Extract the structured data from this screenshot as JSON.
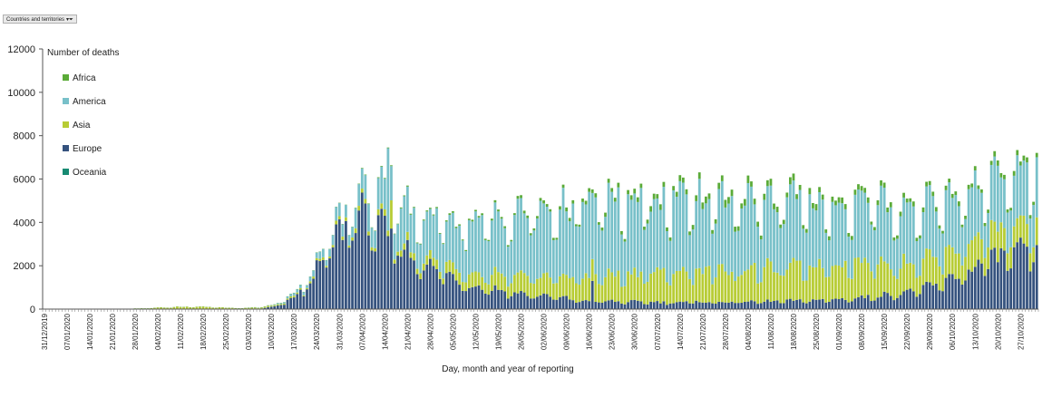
{
  "toolbar": {
    "filter_label": "Countries and territories"
  },
  "chart_data": {
    "type": "bar",
    "stacked": true,
    "ylabel": "Number of deaths",
    "xlabel": "Day, month and year of reporting",
    "ylim": [
      0,
      12000
    ],
    "yticks": [
      0,
      2000,
      4000,
      6000,
      8000,
      10000,
      12000
    ],
    "grid": false,
    "legend": "top-left",
    "x_start": "31/12/2019",
    "x_end": "01/11/2020",
    "xtick_labels": [
      "31/12/2019",
      "07/01/2020",
      "14/01/2020",
      "21/01/2020",
      "28/01/2020",
      "04/02/2020",
      "11/02/2020",
      "18/02/2020",
      "25/02/2020",
      "03/03/2020",
      "10/03/2020",
      "17/03/2020",
      "24/03/2020",
      "31/03/2020",
      "07/04/2020",
      "14/04/2020",
      "21/04/2020",
      "28/04/2020",
      "05/05/2020",
      "12/05/2020",
      "19/05/2020",
      "26/05/2020",
      "02/06/2020",
      "09/06/2020",
      "16/06/2020",
      "23/06/2020",
      "30/06/2020",
      "07/07/2020",
      "14/07/2020",
      "21/07/2020",
      "28/07/2020",
      "04/08/2020",
      "11/08/2020",
      "18/08/2020",
      "25/08/2020",
      "01/09/2020",
      "08/09/2020",
      "15/09/2020",
      "22/09/2020",
      "29/09/2020",
      "06/10/2020",
      "13/10/2020",
      "20/10/2020",
      "27/10/2020"
    ],
    "series_order": [
      "Africa",
      "America",
      "Asia",
      "Europe",
      "Oceania"
    ],
    "colors": {
      "Africa": "#5bab38",
      "America": "#78c0c9",
      "Asia": "#b7cc34",
      "Europe": "#35527e",
      "Oceania": "#178a72"
    },
    "anchors": {
      "Europe": [
        [
          0,
          0
        ],
        [
          62,
          0
        ],
        [
          68,
          50
        ],
        [
          72,
          150
        ],
        [
          76,
          450
        ],
        [
          80,
          900
        ],
        [
          85,
          2000
        ],
        [
          90,
          3300
        ],
        [
          95,
          4200
        ],
        [
          98,
          4300
        ],
        [
          103,
          3800
        ],
        [
          106,
          3300
        ],
        [
          110,
          2900
        ],
        [
          113,
          2500
        ],
        [
          118,
          2000
        ],
        [
          123,
          1700
        ],
        [
          128,
          1300
        ],
        [
          133,
          1050
        ],
        [
          138,
          950
        ],
        [
          143,
          800
        ],
        [
          148,
          700
        ],
        [
          153,
          620
        ],
        [
          158,
          560
        ],
        [
          165,
          400
        ],
        [
          172,
          370
        ],
        [
          180,
          340
        ],
        [
          190,
          320
        ],
        [
          200,
          330
        ],
        [
          210,
          330
        ],
        [
          220,
          350
        ],
        [
          230,
          380
        ],
        [
          240,
          420
        ],
        [
          250,
          500
        ],
        [
          256,
          600
        ],
        [
          262,
          700
        ],
        [
          268,
          850
        ],
        [
          275,
          1100
        ],
        [
          280,
          1400
        ],
        [
          285,
          1800
        ],
        [
          290,
          2200
        ],
        [
          295,
          2500
        ],
        [
          300,
          2600
        ],
        [
          305,
          2600
        ]
      ],
      "Asia": [
        [
          0,
          0
        ],
        [
          22,
          0
        ],
        [
          30,
          30
        ],
        [
          38,
          80
        ],
        [
          44,
          120
        ],
        [
          50,
          100
        ],
        [
          56,
          60
        ],
        [
          62,
          40
        ],
        [
          70,
          50
        ],
        [
          78,
          70
        ],
        [
          85,
          100
        ],
        [
          92,
          150
        ],
        [
          98,
          200
        ],
        [
          105,
          250
        ],
        [
          112,
          300
        ],
        [
          118,
          380
        ],
        [
          125,
          460
        ],
        [
          132,
          560
        ],
        [
          139,
          680
        ],
        [
          146,
          780
        ],
        [
          153,
          900
        ],
        [
          160,
          1000
        ],
        [
          167,
          1100
        ],
        [
          174,
          1200
        ],
        [
          181,
          1300
        ],
        [
          188,
          1350
        ],
        [
          195,
          1400
        ],
        [
          202,
          1450
        ],
        [
          209,
          1500
        ],
        [
          216,
          1500
        ],
        [
          223,
          1500
        ],
        [
          230,
          1550
        ],
        [
          237,
          1600
        ],
        [
          244,
          1650
        ],
        [
          250,
          1700
        ],
        [
          256,
          1600
        ],
        [
          262,
          1450
        ],
        [
          268,
          1300
        ],
        [
          275,
          1300
        ],
        [
          282,
          1300
        ],
        [
          288,
          1300
        ],
        [
          295,
          1200
        ],
        [
          305,
          1100
        ]
      ],
      "America": [
        [
          0,
          0
        ],
        [
          62,
          0
        ],
        [
          70,
          20
        ],
        [
          78,
          150
        ],
        [
          85,
          300
        ],
        [
          92,
          600
        ],
        [
          98,
          1000
        ],
        [
          104,
          1400
        ],
        [
          110,
          1700
        ],
        [
          116,
          1900
        ],
        [
          122,
          2100
        ],
        [
          128,
          2300
        ],
        [
          134,
          2500
        ],
        [
          140,
          2600
        ],
        [
          146,
          2800
        ],
        [
          152,
          3000
        ],
        [
          158,
          3100
        ],
        [
          164,
          3200
        ],
        [
          170,
          3300
        ],
        [
          176,
          3300
        ],
        [
          182,
          3300
        ],
        [
          188,
          3300
        ],
        [
          194,
          3300
        ],
        [
          200,
          3300
        ],
        [
          206,
          3300
        ],
        [
          212,
          3300
        ],
        [
          218,
          3200
        ],
        [
          224,
          3100
        ],
        [
          230,
          3000
        ],
        [
          236,
          2900
        ],
        [
          242,
          2800
        ],
        [
          248,
          2800
        ],
        [
          254,
          2750
        ],
        [
          260,
          2700
        ],
        [
          266,
          2600
        ],
        [
          272,
          2500
        ],
        [
          278,
          2400
        ],
        [
          284,
          2400
        ],
        [
          290,
          2400
        ],
        [
          296,
          2400
        ],
        [
          305,
          2500
        ]
      ],
      "Africa": [
        [
          0,
          0
        ],
        [
          85,
          5
        ],
        [
          95,
          20
        ],
        [
          110,
          40
        ],
        [
          125,
          60
        ],
        [
          140,
          90
        ],
        [
          160,
          140
        ],
        [
          180,
          200
        ],
        [
          200,
          260
        ],
        [
          210,
          280
        ],
        [
          225,
          270
        ],
        [
          240,
          240
        ],
        [
          260,
          200
        ],
        [
          280,
          190
        ],
        [
          305,
          200
        ]
      ],
      "Oceania": [
        [
          0,
          0
        ],
        [
          85,
          1
        ],
        [
          95,
          3
        ],
        [
          105,
          2
        ],
        [
          120,
          1
        ],
        [
          210,
          1
        ],
        [
          230,
          3
        ],
        [
          245,
          2
        ],
        [
          260,
          1
        ],
        [
          305,
          1
        ]
      ]
    },
    "spikes": [
      {
        "day": 106,
        "series": "America",
        "value": 3800
      },
      {
        "day": 107,
        "series": "Asia",
        "value": 1300
      },
      {
        "day": 169,
        "series": "Europe",
        "value": 1300
      },
      {
        "day": 203,
        "series": "America",
        "value": 3000
      },
      {
        "day": 224,
        "series": "America",
        "value": 3500
      },
      {
        "day": 253,
        "series": "America",
        "value": 3000
      },
      {
        "day": 274,
        "series": "America",
        "value": 2800
      },
      {
        "day": 281,
        "series": "America",
        "value": 2700
      }
    ]
  }
}
